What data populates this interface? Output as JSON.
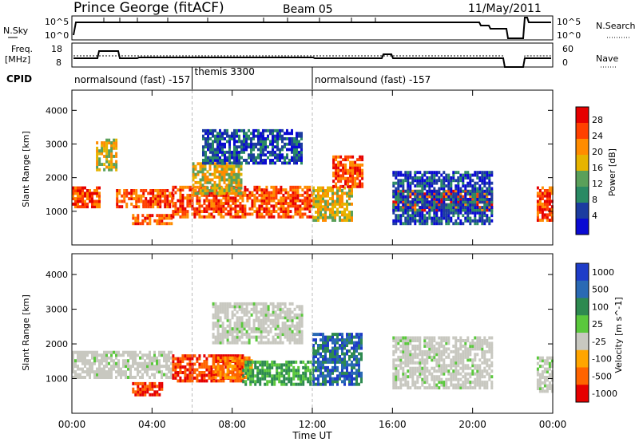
{
  "header": {
    "station": "Prince George (fitACF)",
    "beam": "Beam 05",
    "date": "11/May/2011"
  },
  "nsky_panel": {
    "left_label": "N.Sky",
    "right_label": "N.Search",
    "left_ticks": [
      "10^5",
      "10^0"
    ],
    "right_ticks": [
      "10^5",
      "10^0"
    ]
  },
  "freq_panel": {
    "left_label_1": "Freq.",
    "left_label_2": "[MHz]",
    "right_label": "Nave",
    "left_ticks": [
      "18",
      "8"
    ],
    "right_ticks": [
      "60",
      "0"
    ]
  },
  "cpid": {
    "label": "CPID",
    "modes": [
      {
        "text": "normalsound (fast) -157",
        "start_hour": 0.0
      },
      {
        "text": "themis 3300",
        "start_hour": 6.0
      },
      {
        "text": "normalsound (fast) -157",
        "start_hour": 12.0
      }
    ]
  },
  "time_axis": {
    "label": "Time UT",
    "ticks": [
      "00:00",
      "04:00",
      "08:00",
      "12:00",
      "16:00",
      "20:00",
      "00:00"
    ],
    "tick_hours": [
      0,
      4,
      8,
      12,
      16,
      20,
      24
    ]
  },
  "chart_data": [
    {
      "type": "heatmap",
      "title": "Power",
      "xlabel": "Time UT",
      "ylabel": "Slant Range [km]",
      "xlim_hours": [
        0,
        24
      ],
      "ylim": [
        0,
        4600
      ],
      "yticks": [
        1000,
        2000,
        3000,
        4000
      ],
      "colorbar_label": "Power [dB]",
      "colorbar_ticks": [
        "28",
        "24",
        "20",
        "16",
        "12",
        "8",
        "4"
      ],
      "colorbar_colors": [
        "#e60000",
        "#ff4000",
        "#ff8c00",
        "#e6b400",
        "#5aa05a",
        "#2a8a64",
        "#1c3ca0",
        "#0a0ad2"
      ],
      "bands": [
        {
          "t0": 0.0,
          "t1": 1.4,
          "r0": 1100,
          "r1": 1700,
          "level": "high"
        },
        {
          "t0": 1.2,
          "t1": 2.2,
          "r0": 2200,
          "r1": 3100,
          "level": "mid"
        },
        {
          "t0": 2.2,
          "t1": 5.0,
          "r0": 1100,
          "r1": 1600,
          "level": "high"
        },
        {
          "t0": 3.0,
          "t1": 5.0,
          "r0": 600,
          "r1": 900,
          "level": "high"
        },
        {
          "t0": 5.0,
          "t1": 12.0,
          "r0": 800,
          "r1": 1700,
          "level": "high"
        },
        {
          "t0": 6.0,
          "t1": 8.5,
          "r0": 1500,
          "r1": 2400,
          "level": "mid"
        },
        {
          "t0": 6.5,
          "t1": 11.5,
          "r0": 2400,
          "r1": 3400,
          "level": "low"
        },
        {
          "t0": 12.0,
          "t1": 14.0,
          "r0": 700,
          "r1": 1700,
          "level": "mid"
        },
        {
          "t0": 13.0,
          "t1": 14.5,
          "r0": 1700,
          "r1": 2600,
          "level": "high"
        },
        {
          "t0": 16.0,
          "t1": 21.0,
          "r0": 1000,
          "r1": 1600,
          "level": "high"
        },
        {
          "t0": 16.0,
          "t1": 21.0,
          "r0": 600,
          "r1": 2200,
          "level": "low"
        },
        {
          "t0": 23.2,
          "t1": 24.0,
          "r0": 700,
          "r1": 1700,
          "level": "high"
        }
      ]
    },
    {
      "type": "heatmap",
      "title": "Velocity",
      "xlabel": "Time UT",
      "ylabel": "Slant Range [km]",
      "xlim_hours": [
        0,
        24
      ],
      "ylim": [
        0,
        4600
      ],
      "yticks": [
        1000,
        2000,
        3000,
        4000
      ],
      "colorbar_label": "Velocity [m s^-1]",
      "colorbar_ticks": [
        "1000",
        "500",
        "100",
        "25",
        "-25",
        "-100",
        "-500",
        "-1000"
      ],
      "colorbar_colors": [
        "#1e3cc8",
        "#2a6ab4",
        "#2e8a50",
        "#5ac83c",
        "#c8c8c0",
        "#ffa500",
        "#ff6400",
        "#e60000"
      ],
      "bands": [
        {
          "t0": 0.0,
          "t1": 5.0,
          "r0": 1000,
          "r1": 1800,
          "v": "ground"
        },
        {
          "t0": 3.0,
          "t1": 4.5,
          "r0": 500,
          "r1": 900,
          "v": "neg_strong"
        },
        {
          "t0": 5.0,
          "t1": 8.5,
          "r0": 900,
          "r1": 1700,
          "v": "neg_strong"
        },
        {
          "t0": 7.0,
          "t1": 9.0,
          "r0": 1000,
          "r1": 1600,
          "v": "neg_mid"
        },
        {
          "t0": 8.5,
          "t1": 12.0,
          "r0": 800,
          "r1": 1500,
          "v": "pos_mid"
        },
        {
          "t0": 7.0,
          "t1": 11.5,
          "r0": 2000,
          "r1": 3200,
          "v": "ground"
        },
        {
          "t0": 12.0,
          "t1": 14.5,
          "r0": 800,
          "r1": 2300,
          "v": "pos_strong"
        },
        {
          "t0": 16.0,
          "t1": 21.0,
          "r0": 700,
          "r1": 2200,
          "v": "ground"
        },
        {
          "t0": 23.2,
          "t1": 24.0,
          "r0": 600,
          "r1": 1600,
          "v": "ground"
        }
      ]
    }
  ]
}
